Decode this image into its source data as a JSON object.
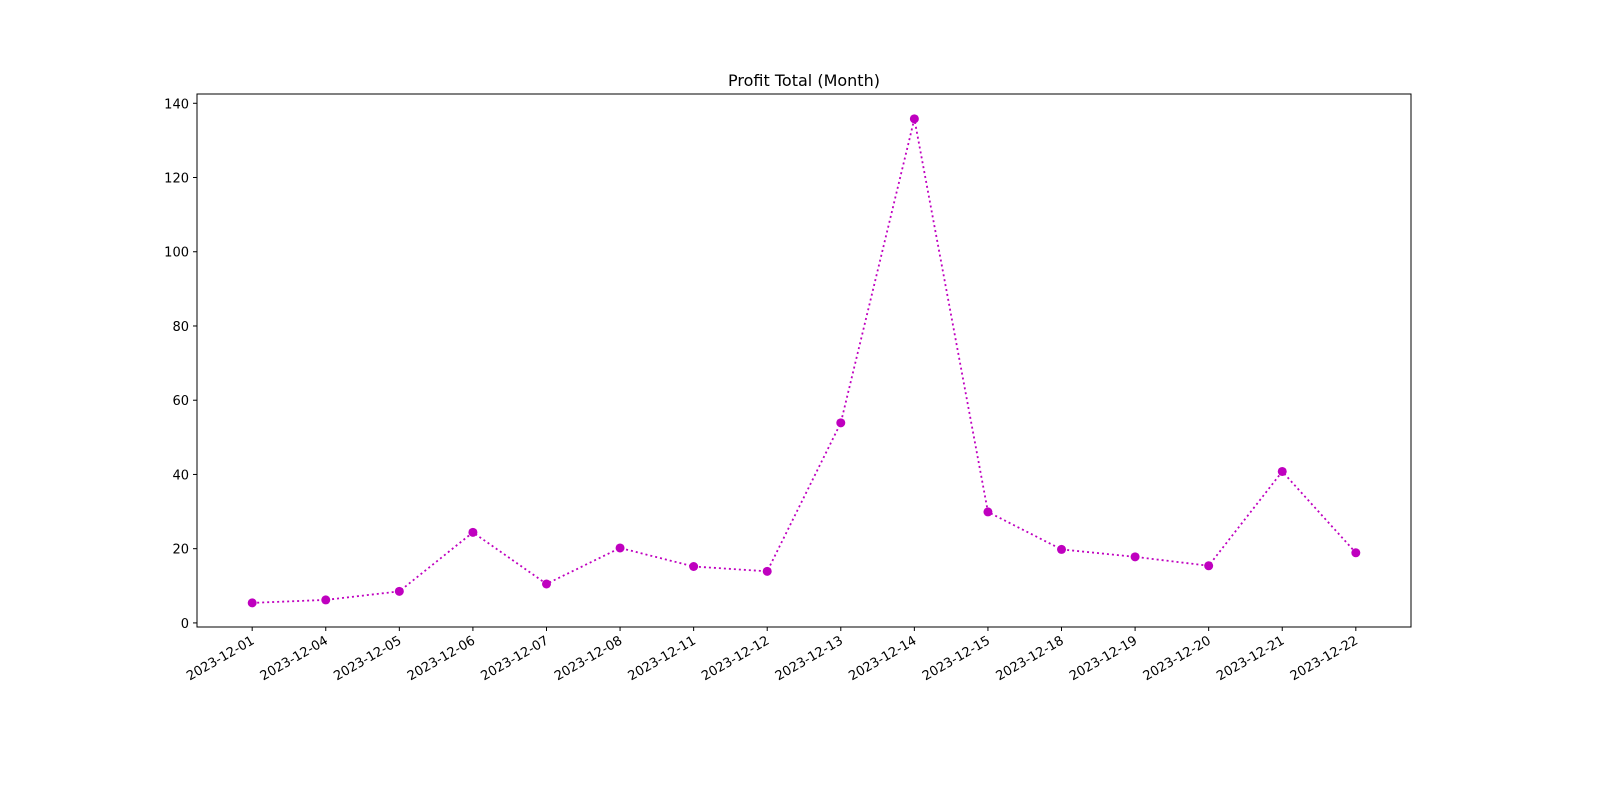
{
  "chart_data": {
    "type": "line",
    "title": "Profit Total (Month)",
    "categories": [
      "2023-12-01",
      "2023-12-04",
      "2023-12-05",
      "2023-12-06",
      "2023-12-07",
      "2023-12-08",
      "2023-12-11",
      "2023-12-12",
      "2023-12-13",
      "2023-12-14",
      "2023-12-15",
      "2023-12-18",
      "2023-12-19",
      "2023-12-20",
      "2023-12-21",
      "2023-12-22"
    ],
    "values": [
      5.4,
      6.2,
      8.5,
      24.4,
      10.5,
      20.2,
      15.2,
      13.9,
      53.9,
      135.8,
      29.9,
      19.8,
      17.8,
      15.4,
      40.8,
      18.9
    ],
    "color": "#bf00bf",
    "line_style": "dotted",
    "ylim": [
      -1.1,
      142.5
    ],
    "yticks": [
      0,
      20,
      40,
      60,
      80,
      100,
      120,
      140
    ],
    "grid": false
  }
}
